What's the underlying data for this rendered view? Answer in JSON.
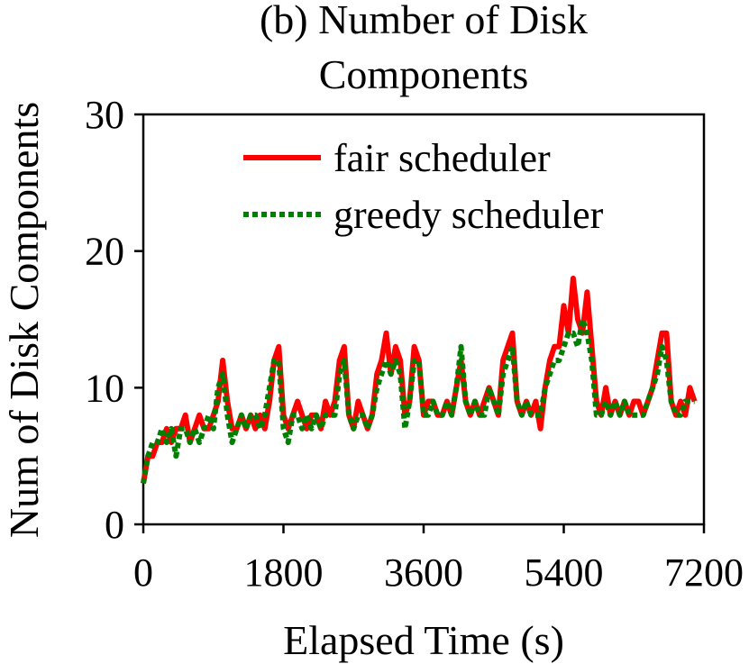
{
  "chart_data": {
    "type": "line",
    "title_lines": [
      "(b) Number of Disk",
      "Components"
    ],
    "xlabel": "Elapsed Time (s)",
    "ylabel": "Num of Disk Components",
    "xlim": [
      0,
      7200
    ],
    "ylim": [
      0,
      30
    ],
    "xticks": [
      0,
      1800,
      3600,
      5400,
      7200
    ],
    "xtick_labels": [
      "0",
      "1800",
      "3600",
      "5400",
      "7200"
    ],
    "yticks": [
      0,
      10,
      20,
      30
    ],
    "ytick_labels": [
      "0",
      "10",
      "20",
      "30"
    ],
    "grid": false,
    "legend_position": "top-right",
    "series": [
      {
        "name": "fair scheduler",
        "color": "#ff0000",
        "dash": "solid",
        "x": [
          0,
          60,
          120,
          180,
          240,
          300,
          360,
          420,
          480,
          540,
          600,
          660,
          720,
          780,
          840,
          900,
          960,
          1020,
          1080,
          1140,
          1200,
          1260,
          1320,
          1380,
          1440,
          1500,
          1560,
          1620,
          1680,
          1740,
          1800,
          1860,
          1920,
          1980,
          2040,
          2100,
          2160,
          2220,
          2280,
          2340,
          2400,
          2460,
          2520,
          2580,
          2640,
          2700,
          2760,
          2820,
          2880,
          2940,
          3000,
          3060,
          3120,
          3180,
          3240,
          3300,
          3360,
          3420,
          3480,
          3540,
          3600,
          3660,
          3720,
          3780,
          3840,
          3900,
          3960,
          4020,
          4080,
          4140,
          4200,
          4260,
          4320,
          4380,
          4440,
          4500,
          4560,
          4620,
          4680,
          4740,
          4800,
          4860,
          4920,
          4980,
          5040,
          5100,
          5160,
          5220,
          5280,
          5340,
          5400,
          5460,
          5520,
          5580,
          5640,
          5700,
          5760,
          5820,
          5880,
          5940,
          6000,
          6060,
          6120,
          6180,
          6240,
          6300,
          6360,
          6420,
          6480,
          6540,
          6600,
          6660,
          6720,
          6780,
          6840,
          6900,
          6960,
          7020,
          7080
        ],
        "y": [
          3,
          5,
          5,
          6,
          6,
          7,
          6,
          7,
          7,
          8,
          6,
          7,
          8,
          7,
          7,
          8,
          9,
          12,
          9,
          7,
          7,
          8,
          7,
          8,
          7,
          8,
          7,
          9,
          12,
          13,
          8,
          7,
          8,
          9,
          8,
          7,
          8,
          8,
          7,
          9,
          8,
          9,
          12,
          13,
          8,
          7,
          9,
          8,
          7,
          8,
          11,
          12,
          14,
          11,
          13,
          12,
          8,
          9,
          13,
          12,
          8,
          9,
          9,
          8,
          8,
          9,
          8,
          10,
          12,
          9,
          8,
          9,
          8,
          9,
          10,
          9,
          8,
          12,
          13,
          14,
          9,
          8,
          9,
          8,
          9,
          7,
          10,
          12,
          13,
          13,
          16,
          14,
          18,
          15,
          14,
          17,
          13,
          9,
          8,
          10,
          8,
          9,
          8,
          9,
          8,
          9,
          9,
          8,
          9,
          10,
          12,
          14,
          14,
          9,
          8,
          9,
          8,
          10,
          9
        ]
      },
      {
        "name": "greedy scheduler",
        "color": "#008000",
        "dash": "dotted",
        "x": [
          0,
          60,
          120,
          180,
          240,
          300,
          360,
          420,
          480,
          540,
          600,
          660,
          720,
          780,
          840,
          900,
          960,
          1020,
          1080,
          1140,
          1200,
          1260,
          1320,
          1380,
          1440,
          1500,
          1560,
          1620,
          1680,
          1740,
          1800,
          1860,
          1920,
          1980,
          2040,
          2100,
          2160,
          2220,
          2280,
          2340,
          2400,
          2460,
          2520,
          2580,
          2640,
          2700,
          2760,
          2820,
          2880,
          2940,
          3000,
          3060,
          3120,
          3180,
          3240,
          3300,
          3360,
          3420,
          3480,
          3540,
          3600,
          3660,
          3720,
          3780,
          3840,
          3900,
          3960,
          4020,
          4080,
          4140,
          4200,
          4260,
          4320,
          4380,
          4440,
          4500,
          4560,
          4620,
          4680,
          4740,
          4800,
          4860,
          4920,
          4980,
          5040,
          5100,
          5160,
          5220,
          5280,
          5340,
          5400,
          5460,
          5520,
          5580,
          5640,
          5700,
          5760,
          5820,
          5880,
          5940,
          6000,
          6060,
          6120,
          6180,
          6240,
          6300,
          6360,
          6420,
          6480,
          6540,
          6600,
          6660,
          6720,
          6780,
          6840,
          6900,
          6960,
          7020,
          7080
        ],
        "y": [
          3,
          5,
          6,
          6,
          7,
          6,
          7,
          5,
          7,
          7,
          6,
          7,
          6,
          7,
          8,
          7,
          10,
          11,
          8,
          6,
          7,
          8,
          7,
          8,
          8,
          7,
          8,
          10,
          12,
          12,
          7,
          6,
          8,
          8,
          7,
          8,
          7,
          8,
          7,
          8,
          8,
          8,
          11,
          12,
          8,
          7,
          8,
          8,
          7,
          8,
          10,
          11,
          12,
          11,
          12,
          11,
          7,
          9,
          12,
          12,
          8,
          8,
          9,
          8,
          8,
          9,
          8,
          10,
          13,
          9,
          8,
          9,
          8,
          8,
          10,
          9,
          8,
          11,
          12,
          13,
          9,
          8,
          9,
          8,
          8,
          8,
          10,
          11,
          12,
          12,
          13,
          14,
          14,
          13,
          15,
          14,
          12,
          8,
          8,
          9,
          8,
          9,
          8,
          9,
          8,
          8,
          8,
          8,
          9,
          10,
          11,
          13,
          12,
          9,
          8,
          8,
          9,
          9,
          9
        ]
      }
    ]
  }
}
